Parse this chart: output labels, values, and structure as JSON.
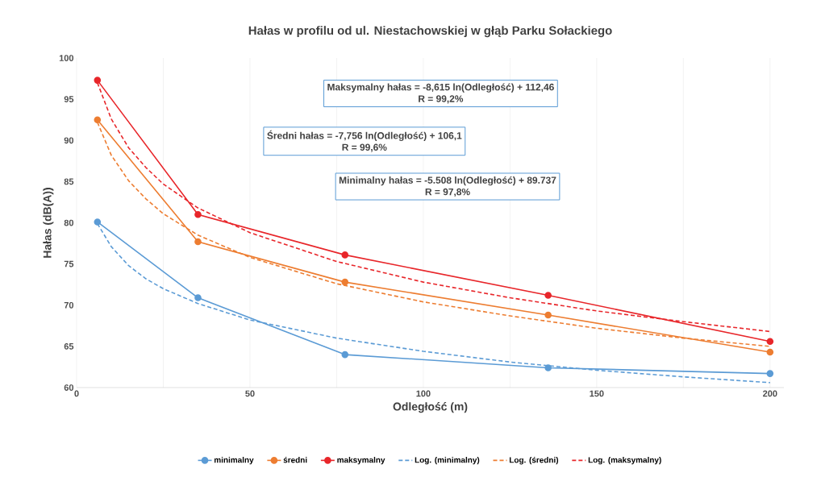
{
  "chart_data": {
    "type": "line",
    "title": "Hałas w profilu od ul. Niestachowskiej w głąb Parku Sołackiego",
    "xlabel": "Odległość (m)",
    "ylabel": "Hałas (dB(A))",
    "xlim": [
      0,
      204
    ],
    "ylim": [
      60,
      100
    ],
    "xticks": [
      0,
      50,
      100,
      150,
      200
    ],
    "yticks": [
      60,
      65,
      70,
      75,
      80,
      85,
      90,
      95,
      100
    ],
    "grid": "x",
    "legend": "bottom",
    "x": [
      6,
      35,
      77.4,
      136,
      200
    ],
    "series": [
      {
        "name": "minimalny",
        "color": "#5b9bd5",
        "marker": "circle",
        "line_style": "solid",
        "values": [
          80.1,
          70.9,
          64.0,
          62.4,
          61.7
        ]
      },
      {
        "name": "średni",
        "color": "#ed7d31",
        "marker": "circle",
        "line_style": "solid",
        "values": [
          92.5,
          77.7,
          72.8,
          68.8,
          64.3
        ]
      },
      {
        "name": "maksymalny",
        "color": "#e8262a",
        "marker": "circle",
        "line_style": "solid",
        "values": [
          97.3,
          81.0,
          76.1,
          71.2,
          65.6
        ]
      },
      {
        "name": "Log. (minimalny)",
        "color": "#5b9bd5",
        "marker": "none",
        "line_style": "dashed",
        "x": [
          6,
          10,
          15,
          20,
          25,
          35,
          50,
          75,
          100,
          125,
          150,
          175,
          200
        ],
        "values": [
          79.9,
          77.1,
          74.8,
          73.2,
          72.0,
          70.2,
          68.2,
          66.0,
          64.4,
          63.1,
          62.1,
          61.3,
          60.6
        ]
      },
      {
        "name": "Log. (średni)",
        "color": "#ed7d31",
        "marker": "none",
        "line_style": "dashed",
        "x": [
          6,
          10,
          15,
          20,
          25,
          35,
          50,
          75,
          100,
          125,
          150,
          175,
          200
        ],
        "values": [
          92.2,
          88.2,
          85.1,
          82.9,
          81.1,
          78.5,
          75.8,
          72.6,
          70.4,
          68.7,
          67.2,
          66.0,
          65.0
        ]
      },
      {
        "name": "Log. (maksymalny)",
        "color": "#e8262a",
        "marker": "none",
        "line_style": "dashed",
        "x": [
          6,
          10,
          15,
          20,
          25,
          35,
          50,
          75,
          100,
          125,
          150,
          175,
          200
        ],
        "values": [
          97.0,
          92.6,
          89.1,
          86.7,
          84.7,
          81.8,
          78.8,
          75.3,
          72.8,
          70.9,
          69.3,
          68.0,
          66.8
        ]
      }
    ],
    "annotations": [
      "Maksymalny hałas = -8,615 ln(Odległość) + 112,46",
      "R = 99,2%",
      "Średni hałas = -7,756 ln(Odległość) + 106,1",
      "R = 99,6%",
      "Minimalny hałas = -5.508 ln(Odległość) + 89.737",
      "R = 97,8%"
    ]
  }
}
